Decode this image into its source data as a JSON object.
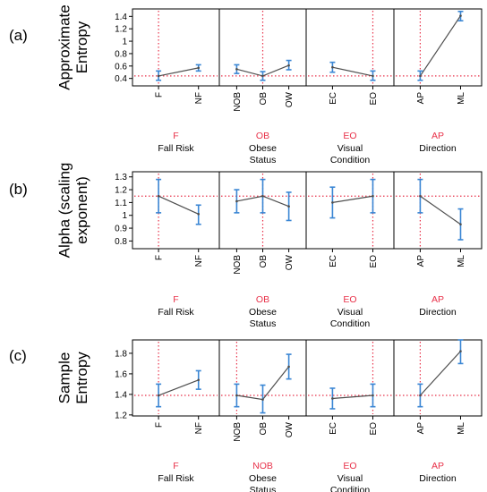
{
  "chart_data": [
    {
      "type": "line",
      "panel_label": "(a)",
      "ylabel": "Approximate Entropy",
      "ylabel_lines": [
        "Approximate",
        "Entropy"
      ],
      "ylim": [
        0.28,
        1.52
      ],
      "yticks": [
        0.4,
        0.6,
        0.8,
        1.0,
        1.2,
        1.4
      ],
      "ytick_labels": [
        "0.4",
        "0.6",
        "0.8",
        "1",
        "1.2",
        "1.4"
      ],
      "reference_line": 0.44,
      "factors": [
        {
          "categories": [
            "F",
            "NF"
          ],
          "mean": [
            0.44,
            0.57
          ],
          "ci_low": [
            0.37,
            0.52
          ],
          "ci_high": [
            0.52,
            0.62
          ],
          "reference_level": "F",
          "name_lines": [
            "Fall Risk"
          ],
          "ref_category_index": 0
        },
        {
          "categories": [
            "NOB",
            "OB",
            "OW"
          ],
          "mean": [
            0.55,
            0.44,
            0.61
          ],
          "ci_low": [
            0.48,
            0.37,
            0.54
          ],
          "ci_high": [
            0.62,
            0.51,
            0.69
          ],
          "reference_level": "OB",
          "name_lines": [
            "Obese",
            "Status"
          ],
          "ref_category_index": 1
        },
        {
          "categories": [
            "EC",
            "EO"
          ],
          "mean": [
            0.58,
            0.44
          ],
          "ci_low": [
            0.5,
            0.37
          ],
          "ci_high": [
            0.66,
            0.52
          ],
          "reference_level": "EO",
          "name_lines": [
            "Visual",
            "Condition"
          ],
          "ref_category_index": 1
        },
        {
          "categories": [
            "AP",
            "ML"
          ],
          "mean": [
            0.44,
            1.41
          ],
          "ci_low": [
            0.37,
            1.33
          ],
          "ci_high": [
            0.52,
            1.48
          ],
          "reference_level": "AP",
          "name_lines": [
            "Direction"
          ],
          "ref_category_index": 0
        }
      ]
    },
    {
      "type": "line",
      "panel_label": "(b)",
      "ylabel": "Alpha (scaling exponent)",
      "ylabel_lines": [
        "Alpha (scaling",
        "exponent)"
      ],
      "ylim": [
        0.74,
        1.34
      ],
      "yticks": [
        0.8,
        0.9,
        1.0,
        1.1,
        1.2,
        1.3
      ],
      "ytick_labels": [
        "0.8",
        "0.9",
        "1",
        "1.1",
        "1.2",
        "1.3"
      ],
      "reference_line": 1.15,
      "factors": [
        {
          "categories": [
            "F",
            "NF"
          ],
          "mean": [
            1.15,
            1.01
          ],
          "ci_low": [
            1.02,
            0.93
          ],
          "ci_high": [
            1.28,
            1.08
          ],
          "reference_level": "F",
          "name_lines": [
            "Fall Risk"
          ],
          "ref_category_index": 0
        },
        {
          "categories": [
            "NOB",
            "OB",
            "OW"
          ],
          "mean": [
            1.11,
            1.15,
            1.07
          ],
          "ci_low": [
            1.02,
            1.02,
            0.96
          ],
          "ci_high": [
            1.2,
            1.28,
            1.18
          ],
          "reference_level": "OB",
          "name_lines": [
            "Obese",
            "Status"
          ],
          "ref_category_index": 1
        },
        {
          "categories": [
            "EC",
            "EO"
          ],
          "mean": [
            1.1,
            1.15
          ],
          "ci_low": [
            0.98,
            1.02
          ],
          "ci_high": [
            1.22,
            1.28
          ],
          "reference_level": "EO",
          "name_lines": [
            "Visual",
            "Condition"
          ],
          "ref_category_index": 1
        },
        {
          "categories": [
            "AP",
            "ML"
          ],
          "mean": [
            1.15,
            0.93
          ],
          "ci_low": [
            1.02,
            0.81
          ],
          "ci_high": [
            1.28,
            1.05
          ],
          "reference_level": "AP",
          "name_lines": [
            "Direction"
          ],
          "ref_category_index": 0
        }
      ]
    },
    {
      "type": "line",
      "panel_label": "(c)",
      "ylabel": "Sample Entropy",
      "ylabel_lines": [
        "Sample",
        "Entropy"
      ],
      "ylim": [
        1.19,
        1.93
      ],
      "yticks": [
        1.2,
        1.4,
        1.6,
        1.8
      ],
      "ytick_labels": [
        "1.2",
        "1.4",
        "1.6",
        "1.8"
      ],
      "reference_line": 1.39,
      "factors": [
        {
          "categories": [
            "F",
            "NF"
          ],
          "mean": [
            1.39,
            1.54
          ],
          "ci_low": [
            1.28,
            1.45
          ],
          "ci_high": [
            1.5,
            1.63
          ],
          "reference_level": "F",
          "name_lines": [
            "Fall Risk"
          ],
          "ref_category_index": 0
        },
        {
          "categories": [
            "NOB",
            "OB",
            "OW"
          ],
          "mean": [
            1.39,
            1.35,
            1.67
          ],
          "ci_low": [
            1.28,
            1.22,
            1.55
          ],
          "ci_high": [
            1.5,
            1.49,
            1.79
          ],
          "reference_level": "NOB",
          "name_lines": [
            "Obese",
            "Status"
          ],
          "ref_category_index": 0
        },
        {
          "categories": [
            "EC",
            "EO"
          ],
          "mean": [
            1.36,
            1.39
          ],
          "ci_low": [
            1.26,
            1.28
          ],
          "ci_high": [
            1.46,
            1.5
          ],
          "reference_level": "EO",
          "name_lines": [
            "Visual",
            "Condition"
          ],
          "ref_category_index": 1
        },
        {
          "categories": [
            "AP",
            "ML"
          ],
          "mean": [
            1.39,
            1.82
          ],
          "ci_low": [
            1.28,
            1.7
          ],
          "ci_high": [
            1.5,
            1.93
          ],
          "reference_level": "AP",
          "name_lines": [
            "Direction"
          ],
          "ref_category_index": 0
        }
      ]
    }
  ],
  "colors": {
    "line": "#4d4d4d",
    "error_bar": "#3a86d4",
    "reference": "#e8324a",
    "frame": "#000000",
    "reference_label": "#e8324a"
  }
}
